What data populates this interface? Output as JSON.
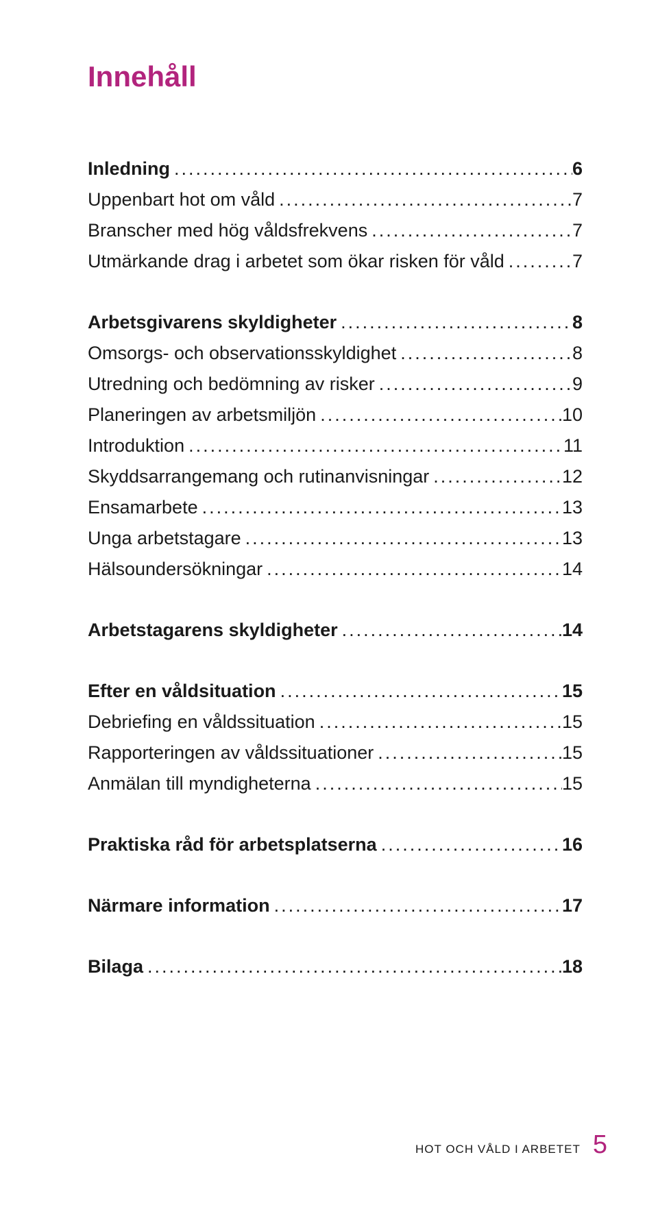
{
  "title": "Innehåll",
  "title_color": "#b2247d",
  "title_fontsize": 42,
  "body_fontsize": 27,
  "line_height": 45,
  "group_gap": 44,
  "toc": [
    {
      "items": [
        {
          "label": "Inledning",
          "page": "6",
          "bold": true
        },
        {
          "label": "Uppenbart hot om våld",
          "page": "7",
          "bold": false
        },
        {
          "label": "Branscher med hög våldsfrekvens",
          "page": "7",
          "bold": false
        },
        {
          "label": "Utmärkande drag i arbetet som ökar risken för våld",
          "page": "7",
          "bold": false
        }
      ]
    },
    {
      "items": [
        {
          "label": "Arbetsgivarens skyldigheter",
          "page": "8",
          "bold": true
        },
        {
          "label": "Omsorgs- och observationsskyldighet",
          "page": "8",
          "bold": false
        },
        {
          "label": "Utredning och bedömning av risker",
          "page": "9",
          "bold": false
        },
        {
          "label": "Planeringen av arbetsmiljön",
          "page": "10",
          "bold": false
        },
        {
          "label": "Introduktion",
          "page": "11",
          "bold": false
        },
        {
          "label": "Skyddsarrangemang och rutinanvisningar",
          "page": "12",
          "bold": false
        },
        {
          "label": "Ensamarbete",
          "page": "13",
          "bold": false
        },
        {
          "label": "Unga arbetstagare",
          "page": "13",
          "bold": false
        },
        {
          "label": "Hälsoundersökningar",
          "page": "14",
          "bold": false
        }
      ]
    },
    {
      "items": [
        {
          "label": "Arbetstagarens skyldigheter",
          "page": "14",
          "bold": true
        }
      ]
    },
    {
      "items": [
        {
          "label": "Efter en våldsituation",
          "page": "15",
          "bold": true
        },
        {
          "label": "Debriefing en våldssituation",
          "page": "15",
          "bold": false
        },
        {
          "label": "Rapporteringen av våldssituationer",
          "page": "15",
          "bold": false
        },
        {
          "label": "Anmälan till myndigheterna",
          "page": "15",
          "bold": false
        }
      ]
    },
    {
      "items": [
        {
          "label": "Praktiska råd för arbetsplatserna",
          "page": "16",
          "bold": true
        }
      ]
    },
    {
      "items": [
        {
          "label": "Närmare information",
          "page": "17",
          "bold": true
        }
      ]
    },
    {
      "items": [
        {
          "label": "Bilaga",
          "page": "18",
          "bold": true
        }
      ]
    }
  ],
  "footer": {
    "text": "HOT OCH VÅLD I ARBETET",
    "text_fontsize": 17,
    "page": "5",
    "page_fontsize": 38,
    "page_color": "#b2247d"
  }
}
